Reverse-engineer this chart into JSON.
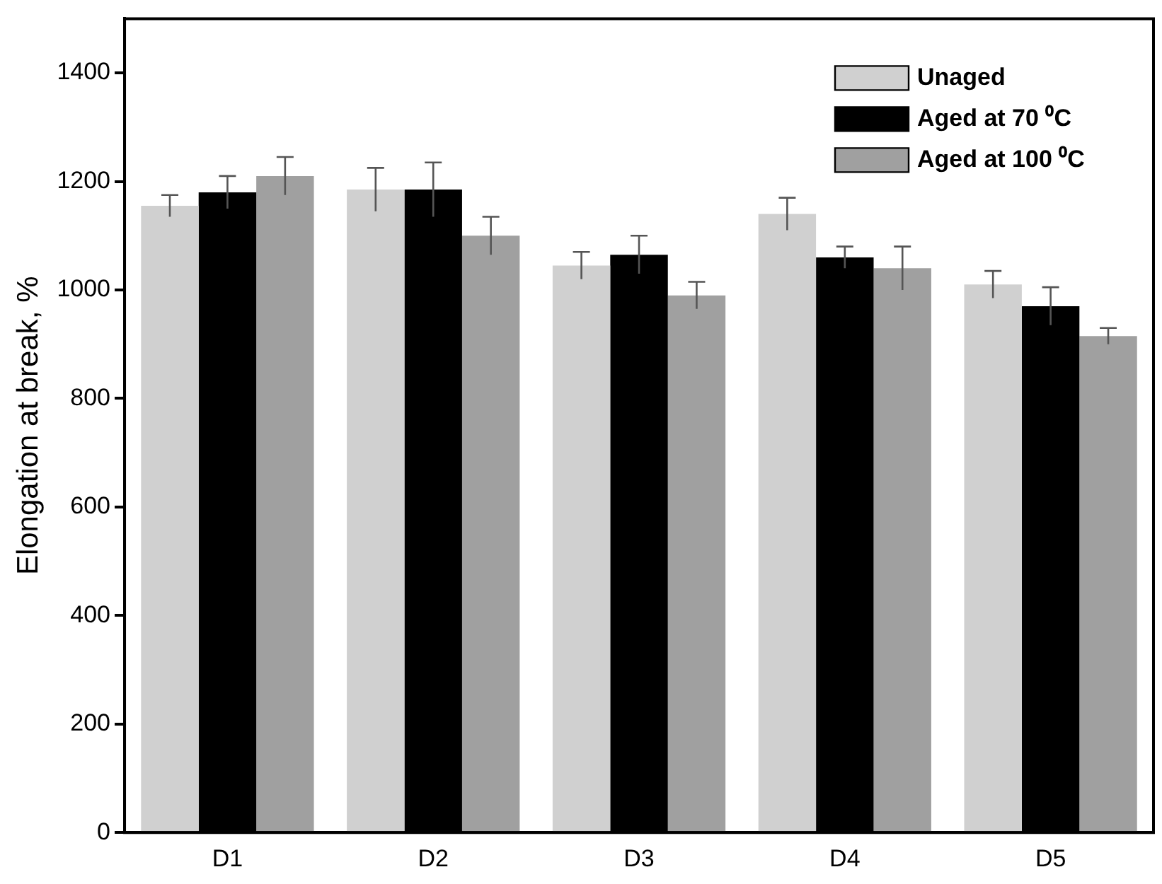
{
  "chart_data": {
    "type": "bar",
    "ylabel": "Elongation at break, %",
    "categories": [
      "D1",
      "D2",
      "D3",
      "D4",
      "D5"
    ],
    "series": [
      {
        "name": "Unaged",
        "color": "#d0d0d0",
        "values": [
          1155,
          1185,
          1045,
          1140,
          1010
        ],
        "errors": [
          20,
          40,
          25,
          30,
          25
        ]
      },
      {
        "name": "Aged at 70 ⁰C",
        "color": "#000000",
        "values": [
          1180,
          1185,
          1065,
          1060,
          970
        ],
        "errors": [
          30,
          50,
          35,
          20,
          35
        ]
      },
      {
        "name": "Aged at 100 ⁰C",
        "color": "#a0a0a0",
        "values": [
          1210,
          1100,
          990,
          1040,
          915
        ],
        "errors": [
          35,
          35,
          25,
          40,
          15
        ]
      }
    ],
    "ylim": [
      0,
      1500
    ],
    "yticks": [
      0,
      200,
      400,
      600,
      800,
      1000,
      1200,
      1400
    ],
    "grid": false,
    "legend": "top right"
  }
}
